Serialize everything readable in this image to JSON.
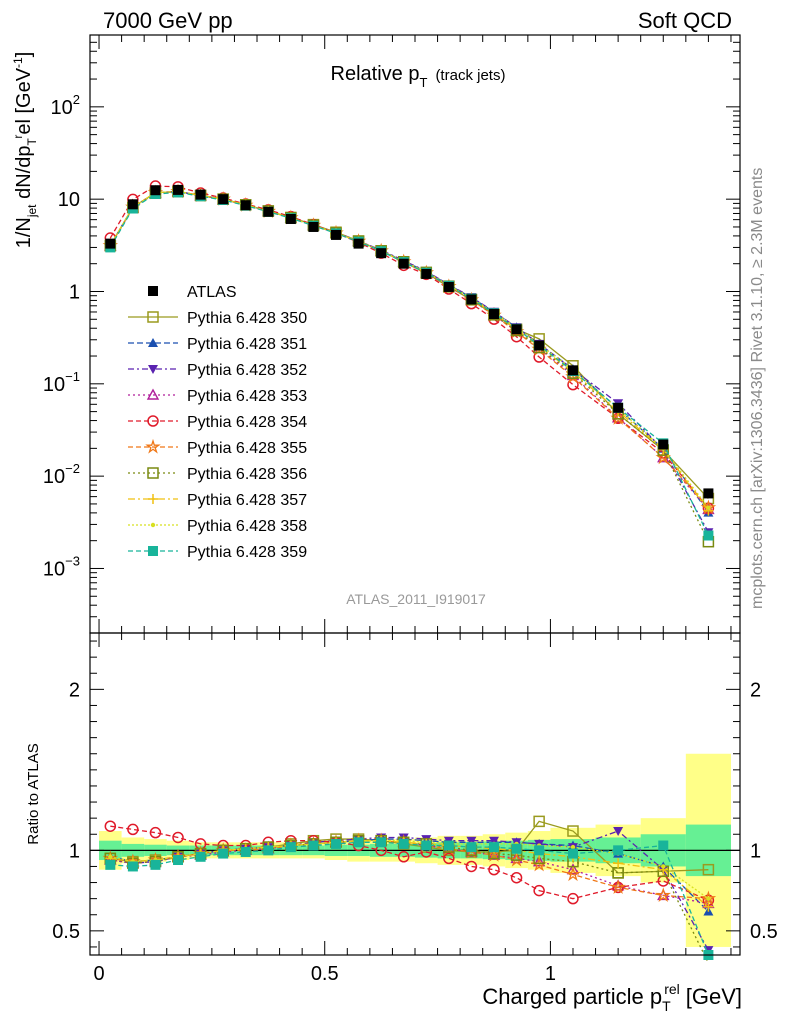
{
  "header": {
    "left": "7000 GeV pp",
    "right": "Soft QCD"
  },
  "side_labels": {
    "rivet": "Rivet 3.1.10, ≥ 2.3M events",
    "mcplots": "mcplots.cern.ch [arXiv:1306.3436]"
  },
  "analysis_id": "ATLAS_2011_I919017",
  "colors": {
    "band_inner": "#66f094",
    "band_outer": "#ffff88"
  },
  "chart_data": [
    {
      "type": "line",
      "title": "Relative p_T (track jets)",
      "title_main": "Relative p",
      "title_sub": "T",
      "title_note": "(track jets)",
      "ylabel": "1/N_jet dN/dp_T^rel [GeV^-1]",
      "y_scale": "log",
      "ylim": [
        0.0002,
        600
      ],
      "xlim": [
        -0.02,
        1.42
      ],
      "y_tick_labels": [
        {
          "value": 0.001,
          "base": "10",
          "exp": "−3"
        },
        {
          "value": 0.01,
          "base": "10",
          "exp": "−2"
        },
        {
          "value": 0.1,
          "base": "10",
          "exp": "−1"
        },
        {
          "value": 1,
          "base": "1",
          "exp": ""
        },
        {
          "value": 10,
          "base": "10",
          "exp": ""
        },
        {
          "value": 100,
          "base": "10",
          "exp": "2"
        }
      ],
      "legend_position": "left-middle",
      "x": [
        0.025,
        0.075,
        0.125,
        0.175,
        0.225,
        0.275,
        0.325,
        0.375,
        0.425,
        0.475,
        0.525,
        0.575,
        0.625,
        0.675,
        0.725,
        0.775,
        0.825,
        0.875,
        0.925,
        0.975,
        1.05,
        1.15,
        1.25,
        1.35
      ],
      "data": {
        "name": "ATLAS",
        "values": [
          3.3,
          8.8,
          12.5,
          12.6,
          11.2,
          10.0,
          8.6,
          7.3,
          6.1,
          5.0,
          4.1,
          3.3,
          2.6,
          2.0,
          1.55,
          1.12,
          0.82,
          0.57,
          0.39,
          0.26,
          0.14,
          0.055,
          0.022,
          0.0065
        ]
      },
      "series": [
        {
          "name": "Pythia 6.428 350",
          "color": "#9a9a1e",
          "marker": "square-open",
          "dash": "solid",
          "ratio": [
            0.95,
            0.93,
            0.94,
            0.96,
            0.98,
            1.0,
            1.01,
            1.02,
            1.04,
            1.06,
            1.07,
            1.07,
            1.06,
            1.04,
            1.02,
            1.0,
            0.99,
            0.99,
            1.0,
            1.18,
            1.12,
            0.86,
            0.87,
            0.88
          ]
        },
        {
          "name": "Pythia 6.428 351",
          "color": "#1a4fb0",
          "marker": "triangle-up",
          "dash": "6,3",
          "ratio": [
            0.96,
            0.93,
            0.94,
            0.96,
            0.98,
            1.0,
            1.01,
            1.02,
            1.03,
            1.04,
            1.05,
            1.06,
            1.07,
            1.07,
            1.06,
            1.05,
            1.05,
            1.05,
            1.05,
            1.04,
            1.03,
            0.98,
            0.9,
            0.62
          ]
        },
        {
          "name": "Pythia 6.428 352",
          "color": "#5a22b0",
          "marker": "triangle-down",
          "dash": "6,3,2,3",
          "ratio": [
            0.94,
            0.92,
            0.93,
            0.96,
            0.98,
            1.0,
            1.01,
            1.02,
            1.03,
            1.05,
            1.06,
            1.07,
            1.08,
            1.08,
            1.07,
            1.06,
            1.06,
            1.06,
            1.05,
            1.04,
            1.02,
            1.12,
            0.88,
            0.38
          ]
        },
        {
          "name": "Pythia 6.428 353",
          "color": "#b01e9a",
          "marker": "triangle-open",
          "dash": "2,3",
          "ratio": [
            0.94,
            0.92,
            0.93,
            0.96,
            0.97,
            0.99,
            1.0,
            1.01,
            1.03,
            1.04,
            1.05,
            1.06,
            1.06,
            1.05,
            1.03,
            1.01,
            0.99,
            0.97,
            0.95,
            0.93,
            0.88,
            0.78,
            0.72,
            0.67
          ]
        },
        {
          "name": "Pythia 6.428 354",
          "color": "#e01a2a",
          "marker": "circle-open",
          "dash": "5,3",
          "ratio": [
            1.15,
            1.13,
            1.11,
            1.08,
            1.04,
            1.03,
            1.03,
            1.05,
            1.06,
            1.06,
            1.05,
            1.03,
            1.0,
            0.96,
            0.99,
            0.95,
            0.9,
            0.88,
            0.83,
            0.75,
            0.7,
            0.77,
            0.81,
            0.69
          ]
        },
        {
          "name": "Pythia 6.428 355",
          "color": "#f07818",
          "marker": "star",
          "dash": "5,3",
          "ratio": [
            0.95,
            0.93,
            0.94,
            0.96,
            0.98,
            1.0,
            1.0,
            1.01,
            1.03,
            1.04,
            1.05,
            1.06,
            1.06,
            1.05,
            1.03,
            1.01,
            0.99,
            0.97,
            0.94,
            0.91,
            0.85,
            0.77,
            0.72,
            0.7
          ]
        },
        {
          "name": "Pythia 6.428 356",
          "color": "#7a8a10",
          "marker": "square-open",
          "dash": "2,3",
          "ratio": [
            0.95,
            0.92,
            0.93,
            0.96,
            0.98,
            1.0,
            1.01,
            1.02,
            1.03,
            1.04,
            1.05,
            1.06,
            1.06,
            1.05,
            1.04,
            1.02,
            1.0,
            0.98,
            0.97,
            0.95,
            0.93,
            0.86,
            0.87,
            0.3
          ]
        },
        {
          "name": "Pythia 6.428 357",
          "color": "#f0c010",
          "marker": "cross",
          "dash": "7,3,2,3",
          "ratio": [
            0.95,
            0.93,
            0.94,
            0.96,
            0.98,
            1.0,
            1.01,
            1.02,
            1.03,
            1.04,
            1.05,
            1.06,
            1.06,
            1.05,
            1.04,
            1.03,
            1.02,
            1.01,
            1.0,
            0.98,
            0.96,
            0.92,
            0.88,
            0.65
          ]
        },
        {
          "name": "Pythia 6.428 358",
          "color": "#d8e020",
          "marker": "dot",
          "dash": "2,2",
          "ratio": [
            0.96,
            0.93,
            0.94,
            0.96,
            0.98,
            1.0,
            1.01,
            1.02,
            1.03,
            1.04,
            1.05,
            1.06,
            1.06,
            1.06,
            1.05,
            1.04,
            1.04,
            1.04,
            1.04,
            1.03,
            1.02,
            0.98,
            0.9,
            0.7
          ]
        },
        {
          "name": "Pythia 6.428 359",
          "color": "#18b49a",
          "marker": "square",
          "dash": "5,3",
          "ratio": [
            0.91,
            0.9,
            0.91,
            0.94,
            0.96,
            0.98,
            0.99,
            1.0,
            1.02,
            1.03,
            1.04,
            1.05,
            1.05,
            1.04,
            1.03,
            1.03,
            1.02,
            1.02,
            1.01,
            1.0,
            0.98,
            1.0,
            1.03,
            0.35
          ]
        }
      ]
    },
    {
      "type": "line",
      "ylabel": "Ratio to ATLAS",
      "xlabel": "Charged particle p_T^rel [GeV]",
      "xlabel_main": "Charged particle p",
      "xlabel_sub": "T",
      "xlabel_sup": "rel",
      "xlabel_unit": "[GeV]",
      "ylim": [
        0.35,
        2.35
      ],
      "xlim": [
        -0.02,
        1.42
      ],
      "y_ticks": [
        0.5,
        1,
        2
      ],
      "y_tick_labels": [
        "0.5",
        "1",
        "2"
      ],
      "x_ticks": [
        0,
        0.5,
        1
      ],
      "x_tick_labels": [
        "0",
        "0.5",
        "1"
      ],
      "reference_line": 1,
      "band_edges": [
        0.0,
        0.05,
        0.1,
        0.15,
        0.2,
        0.25,
        0.3,
        0.35,
        0.4,
        0.45,
        0.5,
        0.55,
        0.6,
        0.65,
        0.7,
        0.75,
        0.8,
        0.85,
        0.9,
        0.95,
        1.0,
        1.1,
        1.2,
        1.3,
        1.4
      ],
      "band_inner": [
        0.06,
        0.04,
        0.035,
        0.03,
        0.03,
        0.03,
        0.03,
        0.03,
        0.03,
        0.03,
        0.035,
        0.035,
        0.04,
        0.04,
        0.045,
        0.05,
        0.05,
        0.055,
        0.06,
        0.065,
        0.07,
        0.08,
        0.1,
        0.16
      ],
      "band_outer": [
        0.12,
        0.08,
        0.07,
        0.06,
        0.05,
        0.05,
        0.05,
        0.05,
        0.05,
        0.05,
        0.06,
        0.07,
        0.07,
        0.07,
        0.08,
        0.09,
        0.09,
        0.1,
        0.11,
        0.12,
        0.14,
        0.16,
        0.2,
        0.6
      ]
    }
  ]
}
